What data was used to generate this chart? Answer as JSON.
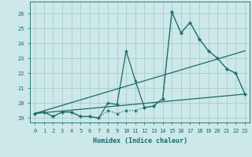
{
  "xlabel": "Humidex (Indice chaleur)",
  "bg_color": "#cce8e8",
  "grid_color": "#aacccc",
  "line_color": "#1a6b6b",
  "xlim": [
    -0.5,
    23.5
  ],
  "ylim": [
    18.7,
    26.8
  ],
  "yticks": [
    19,
    20,
    21,
    22,
    23,
    24,
    25,
    26
  ],
  "xticks": [
    0,
    1,
    2,
    3,
    4,
    5,
    6,
    7,
    8,
    9,
    10,
    11,
    12,
    13,
    14,
    15,
    16,
    17,
    18,
    19,
    20,
    21,
    22,
    23
  ],
  "series1": [
    [
      0,
      19.3
    ],
    [
      1,
      19.4
    ],
    [
      2,
      19.1
    ],
    [
      3,
      19.4
    ],
    [
      4,
      19.4
    ],
    [
      5,
      19.1
    ],
    [
      6,
      19.1
    ],
    [
      7,
      19.0
    ],
    [
      8,
      20.0
    ],
    [
      9,
      19.9
    ],
    [
      10,
      23.5
    ],
    [
      11,
      21.5
    ],
    [
      12,
      19.7
    ],
    [
      13,
      19.8
    ],
    [
      14,
      20.3
    ],
    [
      15,
      26.1
    ],
    [
      16,
      24.7
    ],
    [
      17,
      25.4
    ],
    [
      18,
      24.3
    ],
    [
      19,
      23.5
    ],
    [
      20,
      23.0
    ],
    [
      21,
      22.3
    ],
    [
      22,
      22.0
    ],
    [
      23,
      20.6
    ]
  ],
  "series2": [
    [
      0,
      19.3
    ],
    [
      1,
      19.4
    ],
    [
      2,
      19.1
    ],
    [
      3,
      19.4
    ],
    [
      4,
      19.4
    ],
    [
      5,
      19.1
    ],
    [
      6,
      19.1
    ],
    [
      7,
      19.0
    ],
    [
      8,
      19.5
    ],
    [
      9,
      19.3
    ],
    [
      10,
      19.5
    ],
    [
      11,
      19.5
    ],
    [
      12,
      19.7
    ],
    [
      13,
      19.8
    ],
    [
      14,
      20.3
    ],
    [
      15,
      26.1
    ],
    [
      16,
      24.7
    ],
    [
      17,
      25.4
    ],
    [
      18,
      24.3
    ],
    [
      19,
      23.5
    ],
    [
      20,
      23.0
    ],
    [
      21,
      22.3
    ],
    [
      22,
      22.0
    ],
    [
      23,
      20.6
    ]
  ],
  "line_upper": [
    [
      0,
      19.3
    ],
    [
      23,
      23.5
    ]
  ],
  "line_lower": [
    [
      0,
      19.3
    ],
    [
      23,
      20.6
    ]
  ]
}
